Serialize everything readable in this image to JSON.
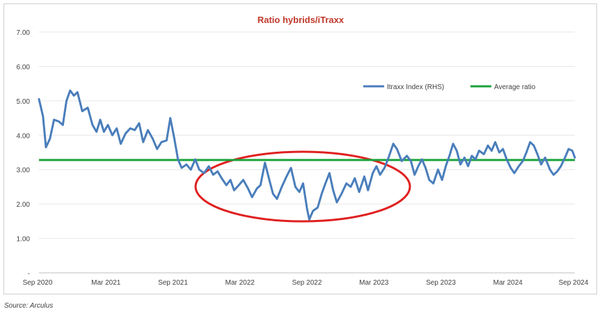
{
  "source": "Source: Arculus",
  "chart_data": {
    "type": "line",
    "title": "Ratio hybrids/iTraxx",
    "xlabel": "",
    "ylabel": "",
    "x_tick_labels": [
      "Sep 2020",
      "Mar 2021",
      "Sep 2021",
      "Mar 2022",
      "Sep 2022",
      "Mar 2023",
      "Sep 2023",
      "Mar 2024",
      "Sep 2024"
    ],
    "y_tick_labels": [
      "-",
      "1.00",
      "2.00",
      "3.00",
      "4.00",
      "5.00",
      "6.00",
      "7.00"
    ],
    "ylim": [
      0,
      7
    ],
    "xlim": [
      "2020-09-01",
      "2024-09-01"
    ],
    "grid": "horizontal",
    "legend_position": "top-right",
    "colors": {
      "series": "#4a7ebb",
      "average": "#1aa33b",
      "highlight": "#e02020",
      "title": "#c0392b"
    },
    "series": [
      {
        "name": "Itraxx Index (RHS)",
        "points": [
          [
            "2020-09-01",
            5.05
          ],
          [
            "2020-09-12",
            4.55
          ],
          [
            "2020-09-20",
            3.65
          ],
          [
            "2020-10-01",
            3.9
          ],
          [
            "2020-10-12",
            4.45
          ],
          [
            "2020-10-25",
            4.4
          ],
          [
            "2020-11-05",
            4.3
          ],
          [
            "2020-11-15",
            5.0
          ],
          [
            "2020-11-25",
            5.3
          ],
          [
            "2020-12-05",
            5.15
          ],
          [
            "2020-12-15",
            5.25
          ],
          [
            "2020-12-28",
            4.7
          ],
          [
            "2021-01-12",
            4.8
          ],
          [
            "2021-01-25",
            4.3
          ],
          [
            "2021-02-05",
            4.1
          ],
          [
            "2021-02-15",
            4.45
          ],
          [
            "2021-02-25",
            4.1
          ],
          [
            "2021-03-08",
            4.3
          ],
          [
            "2021-03-20",
            4.0
          ],
          [
            "2021-04-01",
            4.2
          ],
          [
            "2021-04-12",
            3.75
          ],
          [
            "2021-04-25",
            4.05
          ],
          [
            "2021-05-08",
            4.2
          ],
          [
            "2021-05-20",
            4.15
          ],
          [
            "2021-06-01",
            4.35
          ],
          [
            "2021-06-12",
            3.8
          ],
          [
            "2021-06-25",
            4.15
          ],
          [
            "2021-07-08",
            3.9
          ],
          [
            "2021-07-20",
            3.6
          ],
          [
            "2021-08-01",
            3.8
          ],
          [
            "2021-08-15",
            3.85
          ],
          [
            "2021-08-25",
            4.5
          ],
          [
            "2021-09-05",
            3.9
          ],
          [
            "2021-09-15",
            3.3
          ],
          [
            "2021-09-25",
            3.05
          ],
          [
            "2021-10-08",
            3.15
          ],
          [
            "2021-10-20",
            3.0
          ],
          [
            "2021-11-01",
            3.3
          ],
          [
            "2021-11-12",
            3.0
          ],
          [
            "2021-11-25",
            2.9
          ],
          [
            "2021-12-08",
            3.1
          ],
          [
            "2021-12-20",
            2.85
          ],
          [
            "2022-01-01",
            2.95
          ],
          [
            "2022-01-12",
            2.75
          ],
          [
            "2022-01-25",
            2.55
          ],
          [
            "2022-02-05",
            2.7
          ],
          [
            "2022-02-15",
            2.4
          ],
          [
            "2022-02-28",
            2.55
          ],
          [
            "2022-03-12",
            2.7
          ],
          [
            "2022-03-25",
            2.45
          ],
          [
            "2022-04-05",
            2.2
          ],
          [
            "2022-04-18",
            2.45
          ],
          [
            "2022-04-28",
            2.55
          ],
          [
            "2022-05-10",
            3.2
          ],
          [
            "2022-05-22",
            2.7
          ],
          [
            "2022-06-01",
            2.3
          ],
          [
            "2022-06-12",
            2.15
          ],
          [
            "2022-06-25",
            2.5
          ],
          [
            "2022-07-08",
            2.8
          ],
          [
            "2022-07-20",
            3.05
          ],
          [
            "2022-08-01",
            2.5
          ],
          [
            "2022-08-12",
            2.35
          ],
          [
            "2022-08-22",
            2.6
          ],
          [
            "2022-09-02",
            1.85
          ],
          [
            "2022-09-08",
            1.55
          ],
          [
            "2022-09-18",
            1.8
          ],
          [
            "2022-10-01",
            1.9
          ],
          [
            "2022-10-12",
            2.3
          ],
          [
            "2022-10-22",
            2.6
          ],
          [
            "2022-11-02",
            2.9
          ],
          [
            "2022-11-12",
            2.4
          ],
          [
            "2022-11-22",
            2.05
          ],
          [
            "2022-12-05",
            2.3
          ],
          [
            "2022-12-18",
            2.6
          ],
          [
            "2022-12-30",
            2.5
          ],
          [
            "2023-01-10",
            2.75
          ],
          [
            "2023-01-22",
            2.35
          ],
          [
            "2023-02-05",
            2.8
          ],
          [
            "2023-02-15",
            2.4
          ],
          [
            "2023-02-28",
            2.9
          ],
          [
            "2023-03-10",
            3.1
          ],
          [
            "2023-03-20",
            2.85
          ],
          [
            "2023-04-01",
            3.05
          ],
          [
            "2023-04-12",
            3.35
          ],
          [
            "2023-04-25",
            3.75
          ],
          [
            "2023-05-05",
            3.6
          ],
          [
            "2023-05-18",
            3.25
          ],
          [
            "2023-06-01",
            3.4
          ],
          [
            "2023-06-12",
            3.25
          ],
          [
            "2023-06-22",
            2.85
          ],
          [
            "2023-07-02",
            3.1
          ],
          [
            "2023-07-12",
            3.3
          ],
          [
            "2023-07-22",
            3.05
          ],
          [
            "2023-08-01",
            2.7
          ],
          [
            "2023-08-12",
            2.6
          ],
          [
            "2023-08-25",
            3.0
          ],
          [
            "2023-09-05",
            2.7
          ],
          [
            "2023-09-15",
            3.1
          ],
          [
            "2023-09-25",
            3.4
          ],
          [
            "2023-10-05",
            3.75
          ],
          [
            "2023-10-15",
            3.55
          ],
          [
            "2023-10-25",
            3.15
          ],
          [
            "2023-11-05",
            3.35
          ],
          [
            "2023-11-15",
            3.1
          ],
          [
            "2023-11-25",
            3.4
          ],
          [
            "2023-12-05",
            3.3
          ],
          [
            "2023-12-15",
            3.55
          ],
          [
            "2023-12-28",
            3.45
          ],
          [
            "2024-01-08",
            3.7
          ],
          [
            "2024-01-18",
            3.55
          ],
          [
            "2024-01-28",
            3.8
          ],
          [
            "2024-02-08",
            3.5
          ],
          [
            "2024-02-18",
            3.6
          ],
          [
            "2024-02-28",
            3.3
          ],
          [
            "2024-03-10",
            3.05
          ],
          [
            "2024-03-20",
            2.9
          ],
          [
            "2024-04-01",
            3.1
          ],
          [
            "2024-04-12",
            3.25
          ],
          [
            "2024-04-22",
            3.5
          ],
          [
            "2024-05-02",
            3.8
          ],
          [
            "2024-05-12",
            3.7
          ],
          [
            "2024-05-22",
            3.45
          ],
          [
            "2024-06-01",
            3.15
          ],
          [
            "2024-06-12",
            3.35
          ],
          [
            "2024-06-25",
            3.0
          ],
          [
            "2024-07-05",
            2.85
          ],
          [
            "2024-07-15",
            2.95
          ],
          [
            "2024-07-25",
            3.1
          ],
          [
            "2024-08-05",
            3.35
          ],
          [
            "2024-08-15",
            3.6
          ],
          [
            "2024-08-25",
            3.55
          ],
          [
            "2024-09-01",
            3.35
          ]
        ]
      },
      {
        "name": "Average ratio",
        "value": 3.28
      }
    ]
  }
}
